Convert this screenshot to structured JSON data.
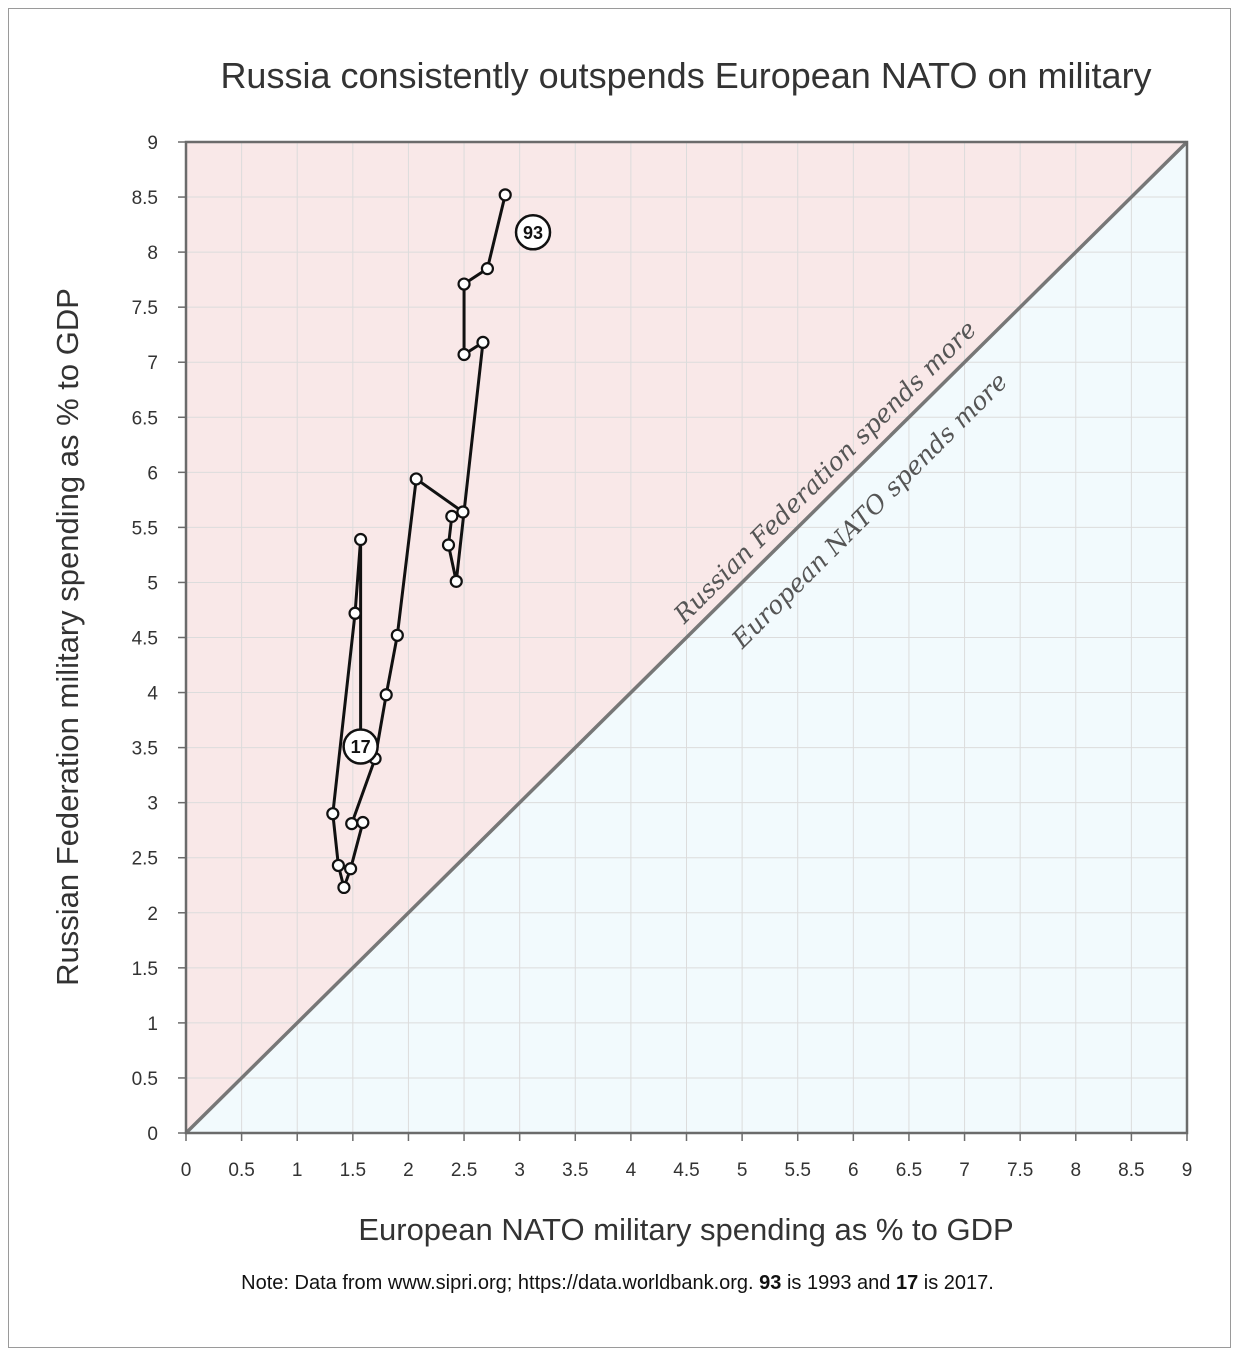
{
  "chart_data": {
    "type": "scatter",
    "title": "Russia consistently outspends European NATO on military",
    "xlabel": "European NATO military spending as % to GDP",
    "ylabel": "Russian Federation military spending as % to GDP",
    "xlim": [
      0,
      9
    ],
    "ylim": [
      0,
      9
    ],
    "x_ticks": [
      "0",
      "0.5",
      "1",
      "1.5",
      "2",
      "2.5",
      "3",
      "3.5",
      "4",
      "4.5",
      "5",
      "5.5",
      "6",
      "6.5",
      "7",
      "7.5",
      "8",
      "8.5",
      "9"
    ],
    "y_ticks": [
      "0",
      "0.5",
      "1",
      "1.5",
      "2",
      "2.5",
      "3",
      "3.5",
      "4",
      "4.5",
      "5",
      "5.5",
      "6",
      "6.5",
      "7",
      "7.5",
      "8",
      "8.5",
      "9"
    ],
    "grid": true,
    "diagonal": "y = x",
    "region_labels": {
      "upper": "Russian Federation spends more",
      "lower": "European NATO spends more"
    },
    "region_colors": {
      "upper": "#f9e8e8",
      "lower": "#f2fafd"
    },
    "series": [
      {
        "points": [
          {
            "x": 2.87,
            "y": 8.52
          },
          {
            "x": 2.71,
            "y": 7.85
          },
          {
            "x": 2.5,
            "y": 7.71
          },
          {
            "x": 2.5,
            "y": 7.07
          },
          {
            "x": 2.67,
            "y": 7.18
          },
          {
            "x": 2.43,
            "y": 5.01
          },
          {
            "x": 2.36,
            "y": 5.34
          },
          {
            "x": 2.39,
            "y": 5.6
          },
          {
            "x": 2.49,
            "y": 5.64
          },
          {
            "x": 2.07,
            "y": 5.94
          },
          {
            "x": 1.9,
            "y": 4.52
          },
          {
            "x": 1.8,
            "y": 3.98
          },
          {
            "x": 1.7,
            "y": 3.4
          },
          {
            "x": 1.49,
            "y": 2.81
          },
          {
            "x": 1.59,
            "y": 2.82
          },
          {
            "x": 1.48,
            "y": 2.4
          },
          {
            "x": 1.42,
            "y": 2.23
          },
          {
            "x": 1.37,
            "y": 2.43
          },
          {
            "x": 1.32,
            "y": 2.9
          },
          {
            "x": 1.52,
            "y": 4.72
          },
          {
            "x": 1.57,
            "y": 5.39
          },
          {
            "x": 1.57,
            "y": 3.51
          }
        ]
      }
    ],
    "annotations": [
      {
        "text": "93",
        "x": 3.12,
        "y": 8.18
      },
      {
        "text": "17",
        "x": 1.57,
        "y": 3.51
      }
    ]
  },
  "note": {
    "prefix": "Note: Data from www.sipri.org; https://data.worldbank.org. ",
    "bold1": "93",
    "middle": " is 1993 and ",
    "bold2": "17",
    "suffix": " is 2017."
  }
}
